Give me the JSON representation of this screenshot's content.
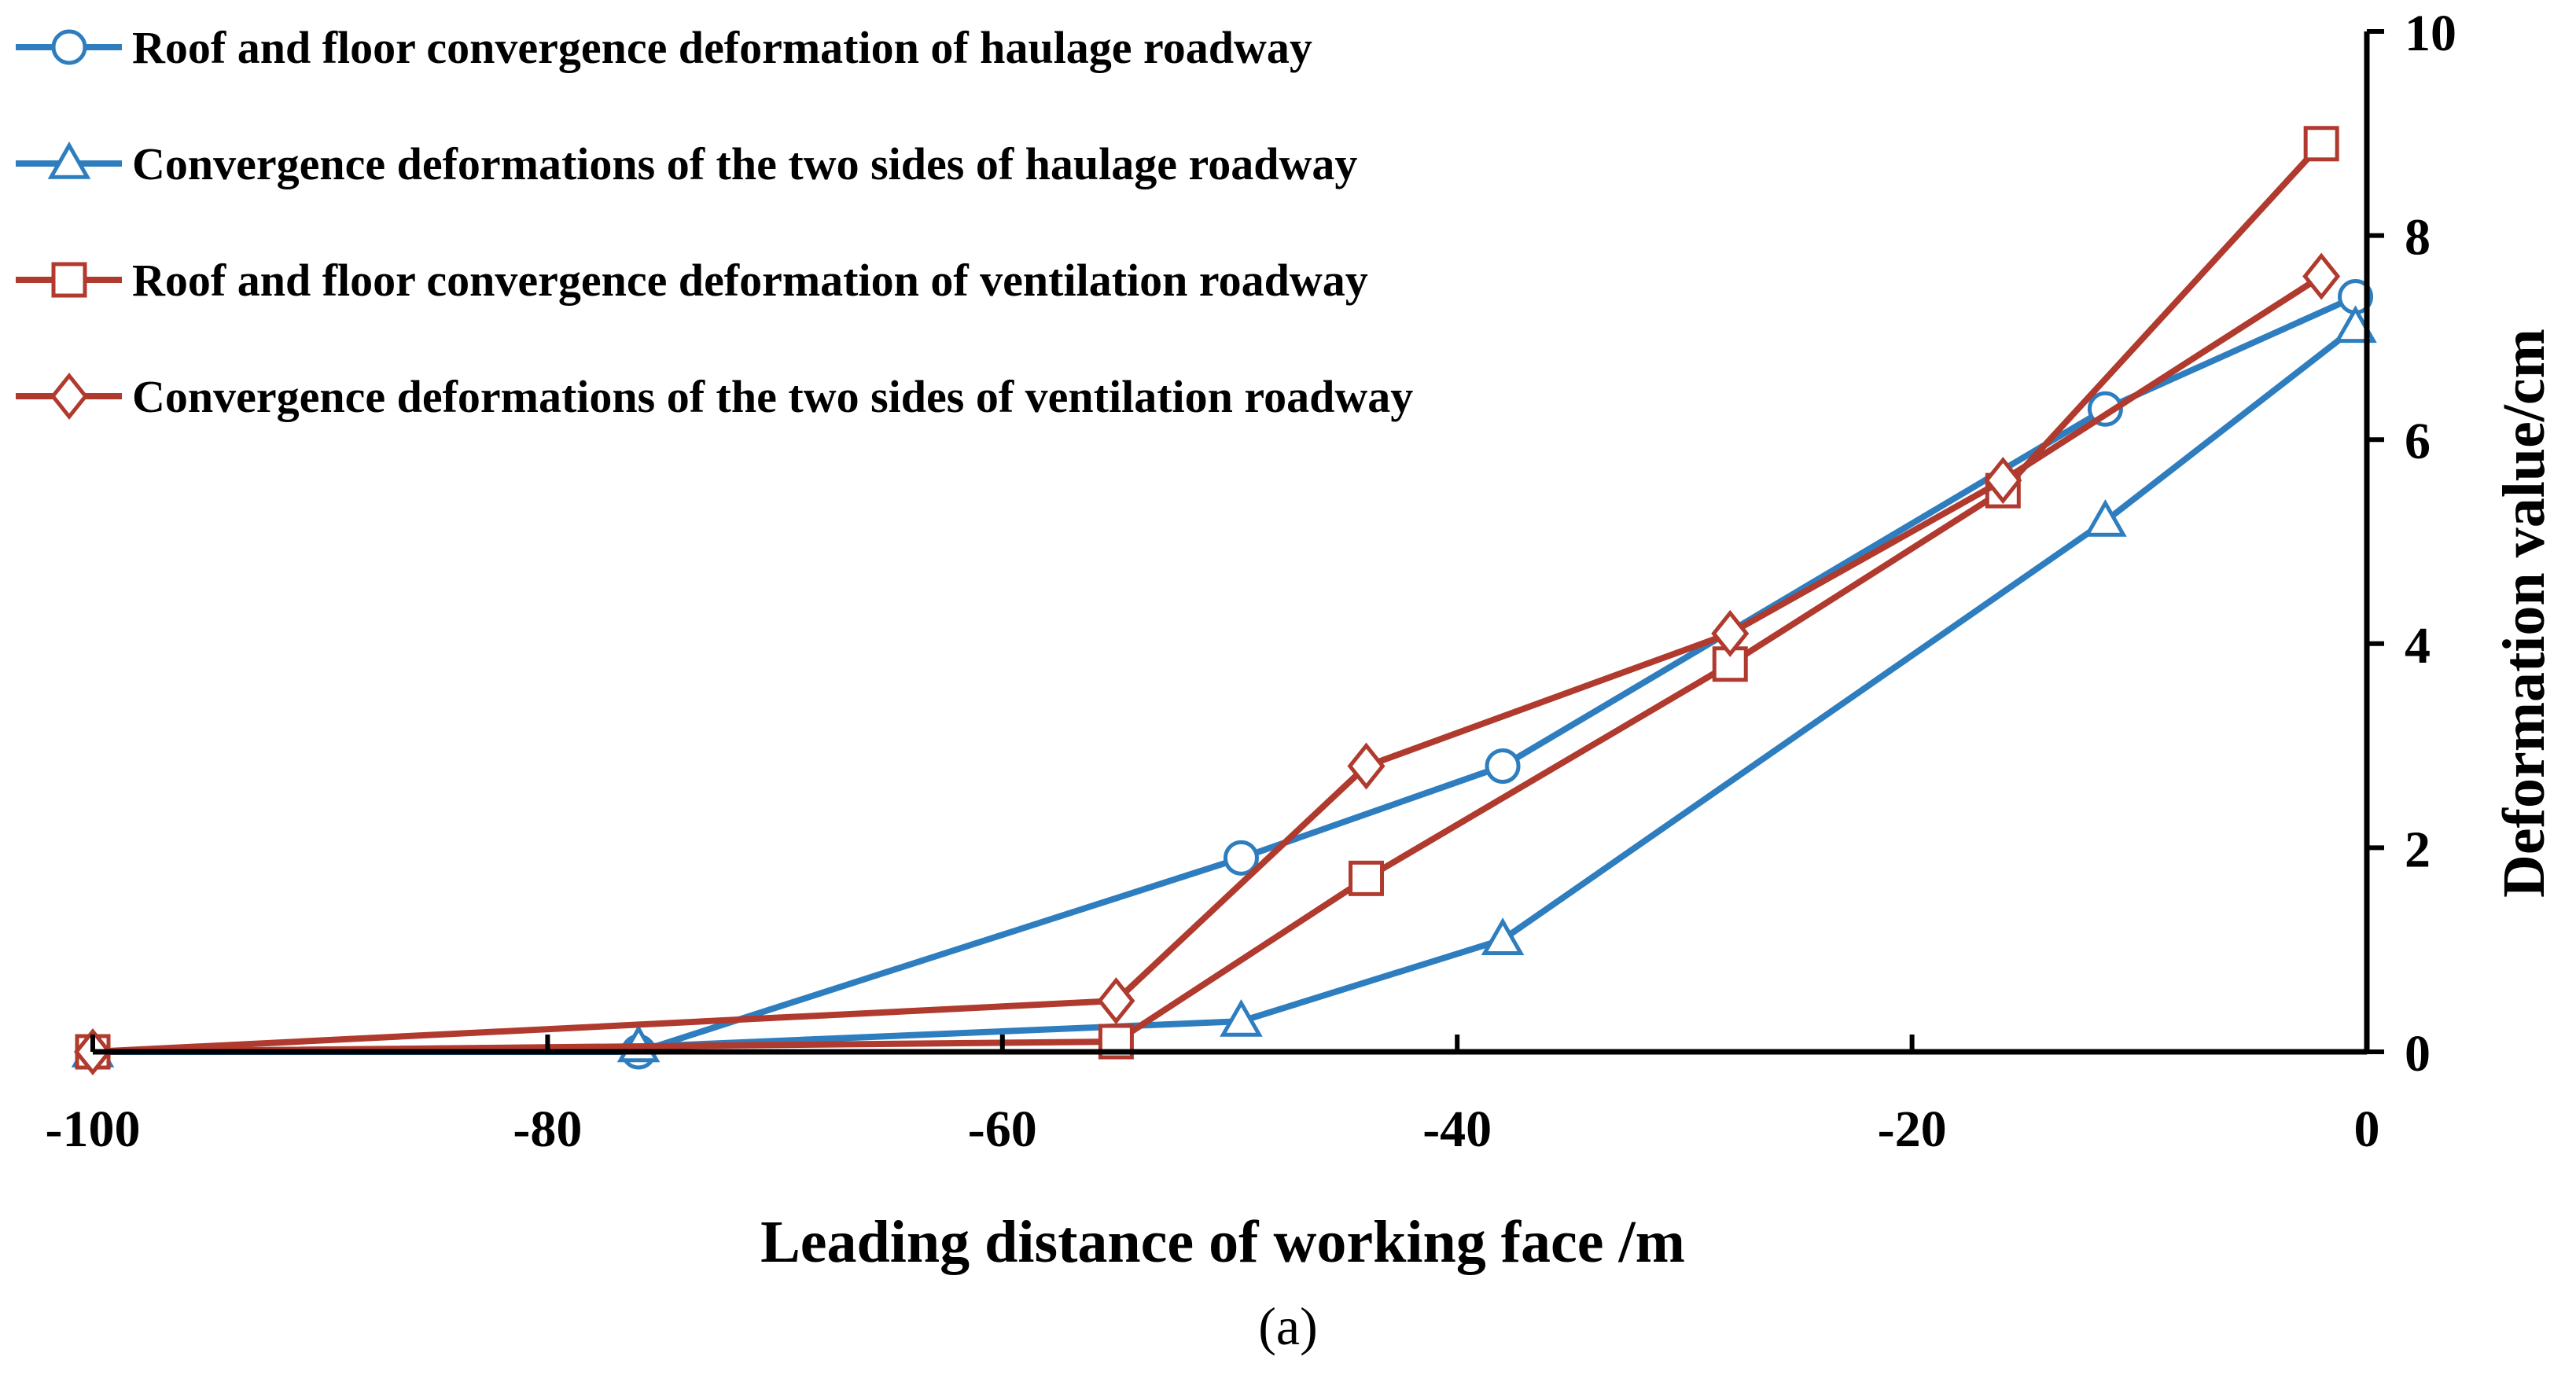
{
  "chart_data": {
    "type": "line",
    "xlabel": "Leading distance of working face /m",
    "ylabel": "Deformation value/cm",
    "caption": "(a)",
    "xlim": [
      -100,
      0
    ],
    "ylim": [
      0,
      10
    ],
    "xticks": [
      "-100",
      "-80",
      "-60",
      "-40",
      "-20",
      "0"
    ],
    "yticks": [
      "0",
      "2",
      "4",
      "6",
      "8",
      "10"
    ],
    "legend_position": "top-left",
    "grid": false,
    "y_axis_side": "right",
    "series": [
      {
        "name": "Roof and floor convergence deformation of haulage roadway",
        "color": "#2E7EBF",
        "marker": "circle",
        "points": [
          [
            -100,
            0
          ],
          [
            -76,
            0
          ],
          [
            -49.5,
            1.9
          ],
          [
            -38,
            2.8
          ],
          [
            -11.5,
            6.3
          ],
          [
            -0.5,
            7.4
          ]
        ]
      },
      {
        "name": "Convergence deformations of the two sides of haulage roadway",
        "color": "#2E7EBF",
        "marker": "triangle",
        "points": [
          [
            -100,
            0
          ],
          [
            -76,
            0.05
          ],
          [
            -49.5,
            0.3
          ],
          [
            -38,
            1.1
          ],
          [
            -11.5,
            5.2
          ],
          [
            -0.5,
            7.1
          ]
        ]
      },
      {
        "name": "Roof and floor convergence deformation of ventilation roadway",
        "color": "#B03A2E",
        "marker": "square",
        "points": [
          [
            -100,
            0
          ],
          [
            -55,
            0.1
          ],
          [
            -44,
            1.7
          ],
          [
            -28,
            3.8
          ],
          [
            -16,
            5.5
          ],
          [
            -2,
            8.9
          ]
        ]
      },
      {
        "name": "Convergence deformations of the two sides of ventilation roadway",
        "color": "#B03A2E",
        "marker": "diamond",
        "points": [
          [
            -100,
            0
          ],
          [
            -55,
            0.5
          ],
          [
            -44,
            2.8
          ],
          [
            -28,
            4.1
          ],
          [
            -16,
            5.6
          ],
          [
            -2,
            7.6
          ]
        ]
      }
    ]
  }
}
